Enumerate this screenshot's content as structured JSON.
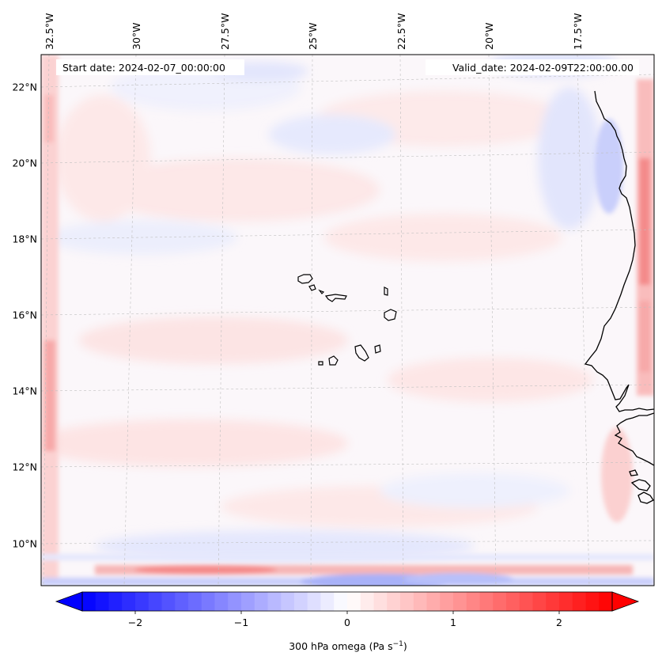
{
  "map": {
    "start_date_label": "Start date: 2024-02-07_00:00:00",
    "valid_date_label": "Valid_date: 2024-02-09T22:00:00.00",
    "lon_labels": [
      "32.5°W",
      "30°W",
      "27.5°W",
      "25°W",
      "22.5°W",
      "20°W",
      "17.5°W"
    ],
    "lat_labels": [
      "22°N",
      "20°N",
      "18°N",
      "16°N",
      "14°N",
      "12°N",
      "10°N"
    ],
    "extent": {
      "lon_min": -33.0,
      "lon_max": -15.7,
      "lat_min": 8.9,
      "lat_max": 22.7
    },
    "features": [
      "Cape Verde islands",
      "West African coastline"
    ]
  },
  "colorbar": {
    "label_main": "300 hPa omega (Pa s",
    "label_exp": "−1",
    "label_end": ")",
    "ticks": [
      "−2",
      "−1",
      "0",
      "1",
      "2"
    ],
    "tick_values": [
      -2,
      -1,
      0,
      1,
      2
    ],
    "vmin": -2.5,
    "vmax": 2.5,
    "levels": 40,
    "colormap": "bwr",
    "colors": {
      "low": "#0000ff",
      "mid": "#ffffff",
      "high": "#ff0000"
    },
    "extend": "both"
  }
}
